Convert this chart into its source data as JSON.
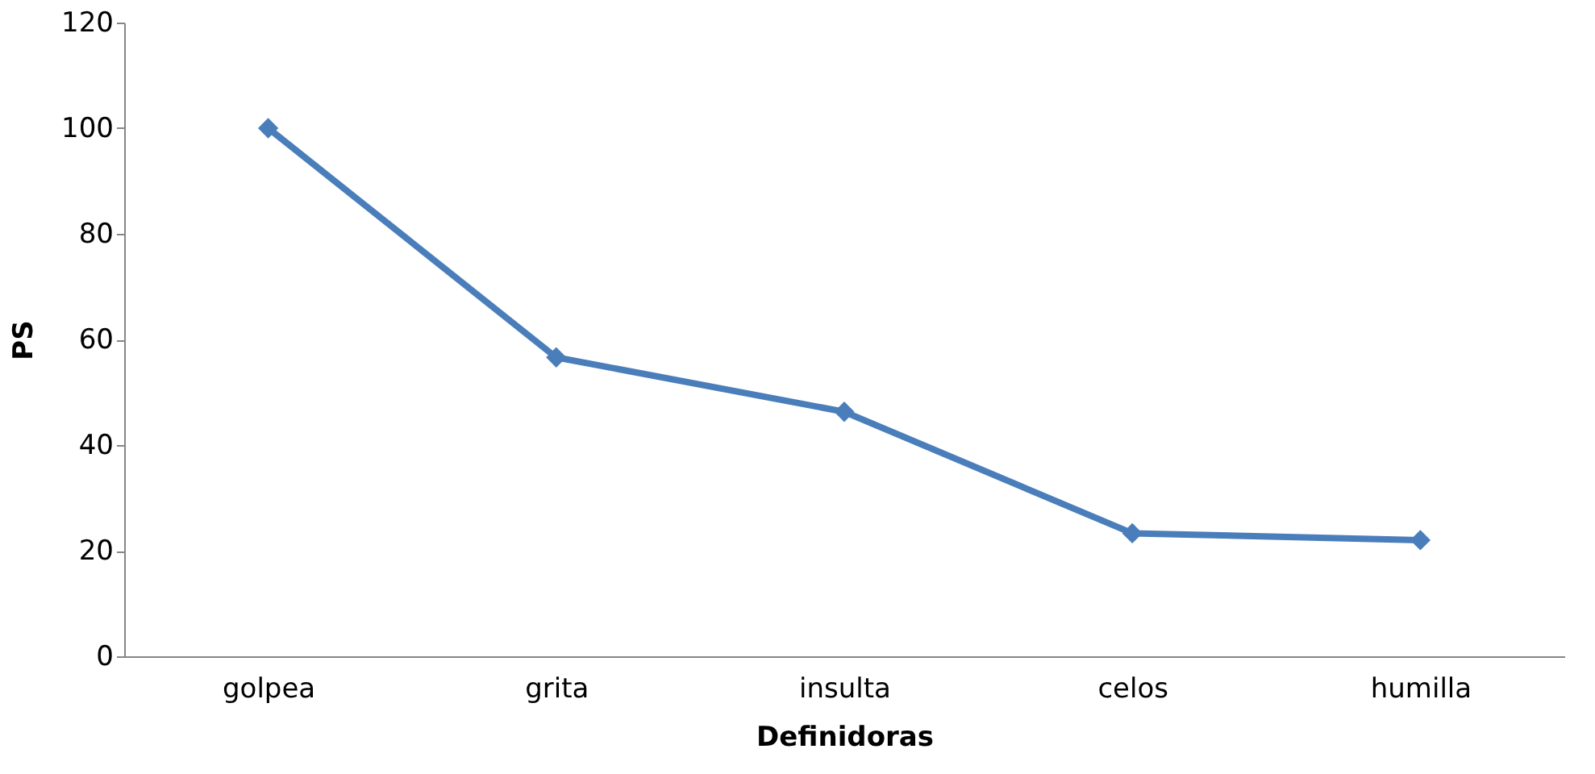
{
  "chart_data": {
    "type": "line",
    "xlabel": "Definidoras",
    "ylabel": "PS",
    "categories": [
      "golpea",
      "grita",
      "insulta",
      "celos",
      "humilla"
    ],
    "series": [
      {
        "color": "#4a7ebb",
        "values": [
          100,
          56.6,
          46.3,
          23.3,
          22.0
        ]
      }
    ],
    "ylim": [
      0,
      120
    ],
    "yticks": [
      0,
      20,
      40,
      60,
      80,
      100,
      120
    ],
    "grid": false,
    "marker": "diamond",
    "line_style": "solid",
    "legend": false
  }
}
